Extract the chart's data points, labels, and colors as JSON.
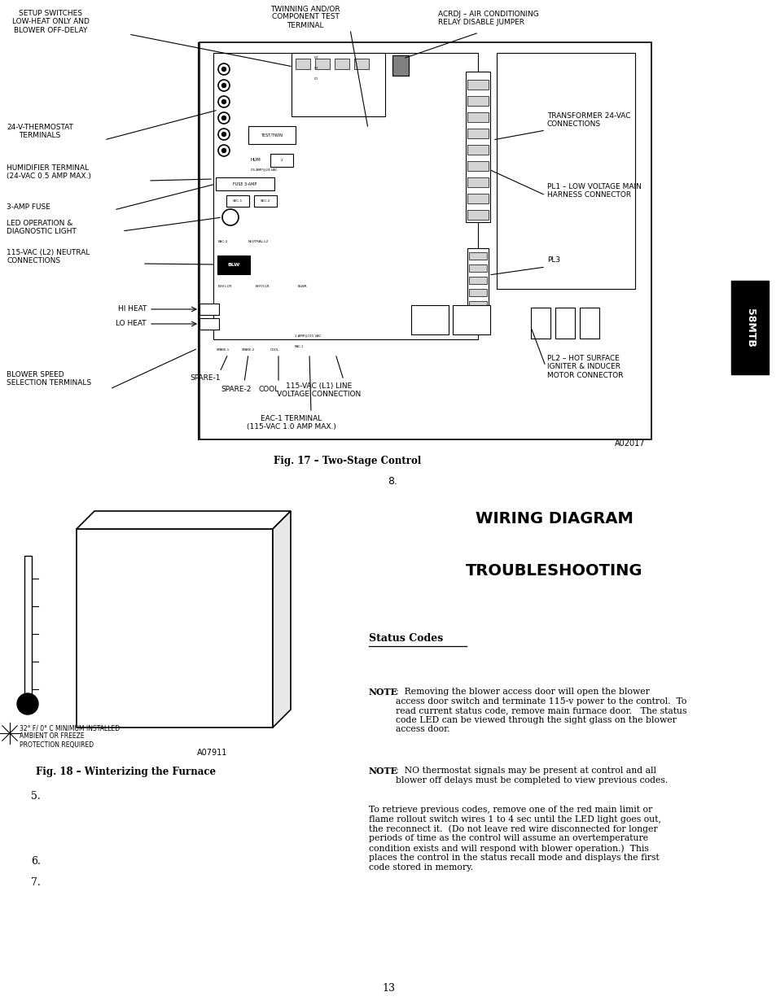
{
  "page_bg": "#ffffff",
  "page_width": 9.54,
  "page_height": 12.35,
  "dpi": 100,
  "tab_bg": "#000000",
  "tab_text": "58MTB",
  "tab_text_color": "#ffffff",
  "fig17_caption": "Fig. 17 – Two-Stage Control",
  "fig18_caption": "Fig. 18 – Winterizing the Furnace",
  "a02017_label": "A02017",
  "a07911_label": "A07911",
  "wiring_title": "WIRING DIAGRAM",
  "troubleshooting_title": "TROUBLESHOOTING",
  "status_codes_title": "Status Codes",
  "note1_bold": "NOTE",
  "note1_text": ":  Removing the blower access door will open the blower\naccess door switch and terminate 115-v power to the control.  To\nread current status code, remove main furnace door.   The status\ncode LED can be viewed through the sight glass on the blower\naccess door.",
  "note2_bold": "NOTE",
  "note2_text": ":  NO thermostat signals may be present at control and all\nblower off delays must be completed to view previous codes.",
  "para3_text": "To retrieve previous codes, remove one of the red main limit or\nflame rollout switch wires 1 to 4 sec until the LED light goes out,\nthe reconnect it.  (Do not leave red wire disconnected for longer\nperiods of time as the control will assume an overtemperature\ncondition exists and will respond with blower operation.)  This\nplaces the control in the status recall mode and displays the first\ncode stored in memory.",
  "page_number": "13",
  "number8": "8.",
  "num5": "5.",
  "num6": "6.",
  "num7": "7.",
  "setup_switches_label": "SETUP SWITCHES\nLOW-HEAT ONLY AND\nBLOWER OFF-DELAY",
  "twinning_label": "TWINNING AND/OR\nCOMPONENT TEST\nTERMINAL",
  "acrdj_label": "ACRDJ – AIR CONDITIONING\nRELAY DISABLE JUMPER",
  "thermostat_label": "24-V-THERMOSTAT\nTERMINALS",
  "transformer_label": "TRANSFORMER 24-VAC\nCONNECTIONS",
  "humidifier_label": "HUMIDIFIER TERMINAL\n(24-VAC 0.5 AMP MAX.)",
  "pl1_label": "PL1 – LOW VOLTAGE MAIN\nHARNESS CONNECTOR",
  "fuse_label": "3-AMP FUSE",
  "led_label": "LED OPERATION &\nDIAGNOSTIC LIGHT",
  "pl3_label": "PL3",
  "neutral_label": "115-VAC (L2) NEUTRAL\nCONNECTIONS",
  "hiheat_label": "HI HEAT",
  "loheat_label": "LO HEAT",
  "spare1_label": "SPARE-1",
  "spare2_label": "SPARE-2",
  "cool_label": "COOL",
  "blower_label": "BLOWER SPEED\nSELECTION TERMINALS",
  "l1line_label": "115-VAC (L1) LINE\nVOLTAGE CONNECTION",
  "pl2_label": "PL2 – HOT SURFACE\nIGNITER & INDUCER\nMOTOR CONNECTOR",
  "eac1_label": "EAC-1 TERMINAL\n(115-VAC 1.0 AMP MAX.)",
  "freeze_label": "32° F/ 0° C MINIMUM INSTALLED\nAMBIENT OR FREEZE\nPROTECTION REQUIRED"
}
